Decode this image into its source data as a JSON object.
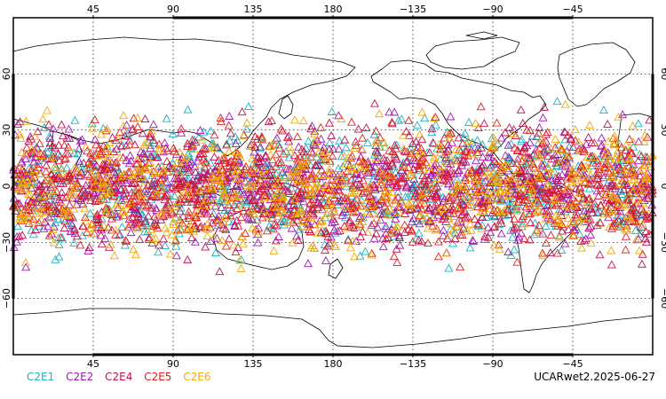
{
  "map": {
    "projection": "cylindrical",
    "lon_center": 180,
    "lon_range": [
      0,
      360
    ],
    "lat_range": [
      -90,
      90
    ],
    "grid": true,
    "lon_ticks": [
      "45",
      "90",
      "135",
      "180",
      "−135",
      "−90",
      "−45"
    ],
    "lat_ticks": [
      "60",
      "30",
      "0",
      "−30",
      "−60"
    ],
    "observations": {
      "marker": "triangle-outline",
      "lat_band": [
        -48,
        48
      ],
      "count_per_mission_approx": 700
    }
  },
  "legend": [
    {
      "label": "C2E1",
      "color": "#19b2c4"
    },
    {
      "label": "C2E2",
      "color": "#a01ab4"
    },
    {
      "label": "C2E4",
      "color": "#c0104c"
    },
    {
      "label": "C2E5",
      "color": "#e02020"
    },
    {
      "label": "C2E6",
      "color": "#f5a800"
    }
  ],
  "caption": "UCARwet2.2025-06-27"
}
